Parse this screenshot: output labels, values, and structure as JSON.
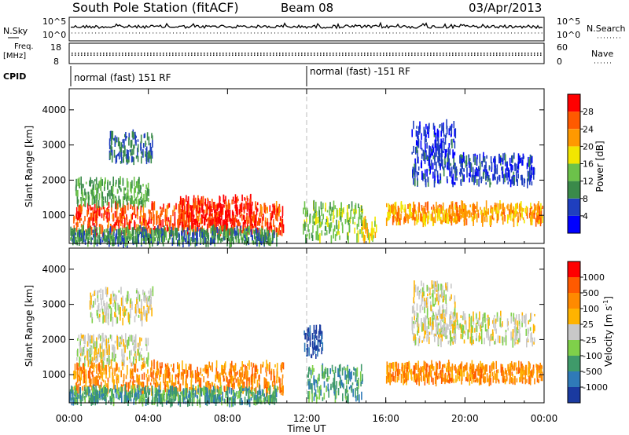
{
  "header": {
    "station": "South Pole Station (fitACF)",
    "beam": "Beam 08",
    "date": "03/Apr/2013"
  },
  "top_panels": {
    "nsky_label": "N.Sky",
    "nsearch_label": "N.Search",
    "nsky_ticks": [
      "10^5",
      "10^0"
    ],
    "nsearch_ticks": [
      "10^5",
      "10^0"
    ],
    "freq_label": "Freq.",
    "freq_unit": "[MHz]",
    "freq_ticks": [
      "18",
      "8"
    ],
    "nave_label": "Nave",
    "nave_ticks": [
      "60",
      "0"
    ],
    "cpid_label": "CPID",
    "cpid_segments": [
      "normal (fast) 151 RF",
      "normal (fast) -151 RF"
    ]
  },
  "chart_data": [
    {
      "type": "heatmap",
      "parameter": "Power",
      "ylabel": "Slant Range [km]",
      "ylim": [
        200,
        4600
      ],
      "yticks": [
        1000,
        2000,
        3000,
        4000
      ],
      "xlim": [
        0,
        24
      ],
      "colorbar": {
        "label": "Power [dB]",
        "levels": [
          0,
          4,
          8,
          12,
          16,
          20,
          24,
          28,
          32
        ],
        "tick_labels": [
          "4",
          "8",
          "12",
          "16",
          "20",
          "24",
          "28"
        ],
        "colors": [
          "#0000ff",
          "#1f3fbf",
          "#3a8a4a",
          "#6cc24a",
          "#f2e600",
          "#ff9900",
          "#ff5a00",
          "#ff0000"
        ]
      },
      "regions": [
        {
          "t0": 0.2,
          "t1": 10.8,
          "r0": 500,
          "r1": 1300,
          "level": 27
        },
        {
          "t0": 5.5,
          "t1": 9.5,
          "r0": 600,
          "r1": 1500,
          "level": 30
        },
        {
          "t0": 0.3,
          "t1": 4.0,
          "r0": 1300,
          "r1": 2000,
          "level": 12
        },
        {
          "t0": 2.0,
          "t1": 4.2,
          "r0": 2500,
          "r1": 3300,
          "level": 8
        },
        {
          "t0": 0.0,
          "t1": 10.5,
          "r0": 200,
          "r1": 600,
          "level": 10
        },
        {
          "t0": 11.8,
          "t1": 14.8,
          "r0": 300,
          "r1": 1300,
          "level": 14
        },
        {
          "t0": 14.8,
          "t1": 15.5,
          "r0": 300,
          "r1": 900,
          "level": 18
        },
        {
          "t0": 16.0,
          "t1": 23.9,
          "r0": 800,
          "r1": 1300,
          "level": 22
        },
        {
          "t0": 17.3,
          "t1": 23.5,
          "r0": 1900,
          "r1": 2700,
          "level": 6
        },
        {
          "t0": 17.3,
          "t1": 19.5,
          "r0": 2700,
          "r1": 3600,
          "level": 5
        }
      ]
    },
    {
      "type": "heatmap",
      "parameter": "Velocity",
      "ylabel": "Slant Range [km]",
      "xlabel": "Time UT",
      "ylim": [
        200,
        4600
      ],
      "yticks": [
        1000,
        2000,
        3000,
        4000
      ],
      "xlim": [
        0,
        24
      ],
      "xticks": [
        0,
        4,
        8,
        12,
        16,
        20,
        24
      ],
      "xtick_labels": [
        "00:00",
        "04:00",
        "08:00",
        "12:00",
        "16:00",
        "20:00",
        "00:00"
      ],
      "colorbar": {
        "label": "Velocity [m s",
        "label_sup": "-1",
        "label_end": "]",
        "tick_labels": [
          "1000",
          "500",
          "100",
          "25",
          "-25",
          "-100",
          "-500",
          "-1000"
        ],
        "colors": [
          "#1a3aa0",
          "#2f7ab8",
          "#3f9a6a",
          "#7fd04a",
          "#c8c8c8",
          "#ffb300",
          "#ff8a00",
          "#ff5a00",
          "#ff0000"
        ]
      },
      "regions": [
        {
          "t0": 0.2,
          "t1": 10.8,
          "r0": 500,
          "r1": 1300,
          "level": 6
        },
        {
          "t0": 0.3,
          "t1": 4.0,
          "r0": 1300,
          "r1": 2100,
          "level": 4
        },
        {
          "t0": 1.0,
          "t1": 4.2,
          "r0": 2500,
          "r1": 3400,
          "level": 4
        },
        {
          "t0": 0.0,
          "t1": 10.5,
          "r0": 200,
          "r1": 600,
          "level": 2
        },
        {
          "t0": 11.8,
          "t1": 12.8,
          "r0": 1500,
          "r1": 2300,
          "level": 0
        },
        {
          "t0": 12.0,
          "t1": 14.8,
          "r0": 300,
          "r1": 1200,
          "level": 2
        },
        {
          "t0": 16.0,
          "t1": 23.9,
          "r0": 800,
          "r1": 1300,
          "level": 6
        },
        {
          "t0": 17.3,
          "t1": 23.5,
          "r0": 1900,
          "r1": 2700,
          "level": 4
        },
        {
          "t0": 17.3,
          "t1": 19.5,
          "r0": 2700,
          "r1": 3600,
          "level": 4
        }
      ]
    }
  ]
}
